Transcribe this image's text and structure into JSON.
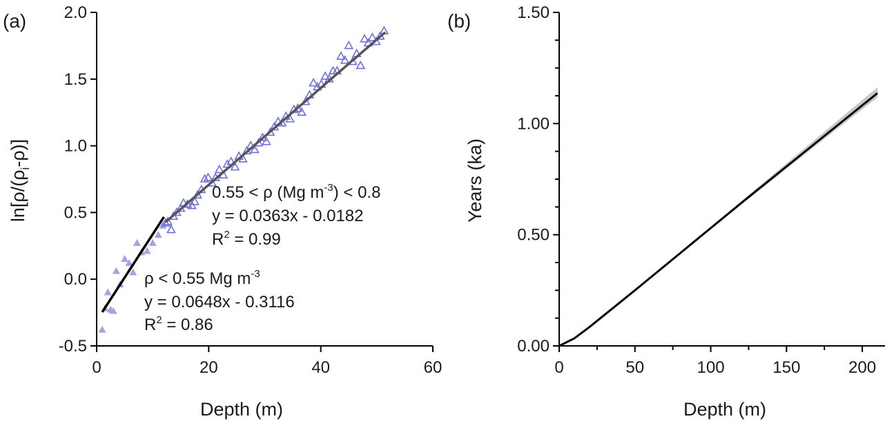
{
  "chart_data": [
    {
      "panel_label": "(a)",
      "type": "scatter",
      "xlabel": "Depth (m)",
      "ylabel_parts": {
        "main": "ln[ρ/(ρ",
        "sub": "i",
        "tail": "-ρ)]"
      },
      "xlim": [
        0,
        60
      ],
      "ylim": [
        -0.5,
        2.0
      ],
      "xticks": [
        0,
        20,
        40,
        60
      ],
      "xtick_labels": [
        "0",
        "20",
        "40",
        "60"
      ],
      "yticks": [
        -0.5,
        0.0,
        0.5,
        1.0,
        1.5,
        2.0
      ],
      "ytick_labels": [
        "-0.5",
        "0.0",
        "0.5",
        "1.0",
        "1.5",
        "2.0"
      ],
      "grid": false,
      "series": [
        {
          "marker": "filled-triangle",
          "color": "#a3a3e6",
          "points": [
            [
              1.0,
              -0.38
            ],
            [
              1.5,
              -0.22
            ],
            [
              2.0,
              -0.1
            ],
            [
              2.5,
              -0.23
            ],
            [
              3.0,
              -0.24
            ],
            [
              3.5,
              0.06
            ],
            [
              4.2,
              -0.04
            ],
            [
              5.0,
              0.15
            ],
            [
              5.8,
              0.12
            ],
            [
              6.5,
              0.05
            ],
            [
              7.2,
              0.27
            ],
            [
              8.0,
              0.2
            ],
            [
              9.0,
              0.21
            ],
            [
              10.0,
              0.27
            ],
            [
              11.0,
              0.33
            ],
            [
              11.8,
              0.4
            ]
          ]
        },
        {
          "marker": "open-triangle",
          "color": "#6f6fdc",
          "points": [
            [
              12.3,
              0.42
            ],
            [
              12.7,
              0.43
            ],
            [
              13.3,
              0.37
            ],
            [
              13.7,
              0.47
            ],
            [
              14.3,
              0.5
            ],
            [
              15.0,
              0.53
            ],
            [
              15.5,
              0.57
            ],
            [
              16.2,
              0.56
            ],
            [
              17.0,
              0.55
            ],
            [
              17.5,
              0.58
            ],
            [
              18.0,
              0.63
            ],
            [
              18.7,
              0.67
            ],
            [
              19.3,
              0.75
            ],
            [
              19.9,
              0.76
            ],
            [
              20.6,
              0.72
            ],
            [
              21.2,
              0.76
            ],
            [
              21.9,
              0.82
            ],
            [
              22.6,
              0.78
            ],
            [
              23.3,
              0.86
            ],
            [
              24.0,
              0.88
            ],
            [
              24.7,
              0.84
            ],
            [
              25.4,
              0.92
            ],
            [
              26.1,
              0.9
            ],
            [
              26.8,
              0.96
            ],
            [
              27.5,
              1.0
            ],
            [
              28.2,
              0.97
            ],
            [
              28.9,
              1.02
            ],
            [
              29.6,
              1.06
            ],
            [
              30.3,
              1.03
            ],
            [
              31.0,
              1.1
            ],
            [
              31.7,
              1.14
            ],
            [
              32.4,
              1.18
            ],
            [
              33.1,
              1.17
            ],
            [
              33.8,
              1.22
            ],
            [
              34.5,
              1.2
            ],
            [
              35.2,
              1.27
            ],
            [
              35.9,
              1.28
            ],
            [
              36.6,
              1.25
            ],
            [
              37.3,
              1.33
            ],
            [
              38.0,
              1.38
            ],
            [
              38.7,
              1.47
            ],
            [
              39.4,
              1.44
            ],
            [
              40.1,
              1.46
            ],
            [
              40.8,
              1.52
            ],
            [
              41.5,
              1.5
            ],
            [
              42.2,
              1.56
            ],
            [
              42.9,
              1.56
            ],
            [
              43.6,
              1.67
            ],
            [
              44.3,
              1.64
            ],
            [
              45.0,
              1.75
            ],
            [
              45.7,
              1.63
            ],
            [
              46.4,
              1.69
            ],
            [
              47.1,
              1.6
            ],
            [
              47.8,
              1.8
            ],
            [
              48.5,
              1.77
            ],
            [
              49.2,
              1.81
            ],
            [
              49.9,
              1.78
            ],
            [
              50.6,
              1.82
            ],
            [
              51.3,
              1.86
            ]
          ]
        }
      ],
      "fits": [
        {
          "color": "#000000",
          "x_range": [
            1.0,
            12.0
          ],
          "slope": 0.0648,
          "intercept": -0.3116
        },
        {
          "color": "#555555",
          "x_range": [
            12.3,
            51.5
          ],
          "slope": 0.0363,
          "intercept": -0.0182
        }
      ],
      "annotations": {
        "upper": {
          "line1_a": "0.55 < ρ (Mg m",
          "line1_sup": "-3",
          "line1_b": ") < 0.8",
          "line2": "y = 0.0363x - 0.0182",
          "line3_a": "R",
          "line3_sup": "2",
          "line3_b": " = 0.99"
        },
        "lower": {
          "line1_a": "ρ < 0.55 Mg m",
          "line1_sup": "-3",
          "line2": "y = 0.0648x - 0.3116",
          "line3_a": "R",
          "line3_sup": "2",
          "line3_b": " = 0.86"
        }
      }
    },
    {
      "panel_label": "(b)",
      "type": "line",
      "xlabel": "Depth (m)",
      "ylabel": "Years (ka)",
      "xlim": [
        0,
        215
      ],
      "ylim": [
        0,
        1.5
      ],
      "xticks": [
        0,
        50,
        100,
        150,
        200
      ],
      "xtick_labels": [
        "0",
        "50",
        "100",
        "150",
        "200"
      ],
      "yticks": [
        0.0,
        0.5,
        1.0,
        1.5
      ],
      "ytick_labels": [
        "0.00",
        "0.50",
        "1.00",
        "1.50"
      ],
      "grid": false,
      "line_color": "#000000",
      "band_color": "#c8c8c8",
      "series": [
        {
          "x": [
            0,
            10,
            20,
            30,
            40,
            50,
            60,
            70,
            80,
            90,
            100,
            110,
            120,
            130,
            140,
            150,
            160,
            170,
            180,
            190,
            200,
            210
          ],
          "y": [
            0.0,
            0.034,
            0.085,
            0.14,
            0.195,
            0.25,
            0.306,
            0.362,
            0.418,
            0.474,
            0.53,
            0.586,
            0.642,
            0.697,
            0.752,
            0.807,
            0.862,
            0.917,
            0.972,
            1.027,
            1.082,
            1.137
          ],
          "band_low": [
            0.0,
            0.033,
            0.084,
            0.139,
            0.194,
            0.249,
            0.305,
            0.36,
            0.415,
            0.47,
            0.525,
            0.58,
            0.634,
            0.688,
            0.742,
            0.796,
            0.85,
            0.904,
            0.958,
            1.011,
            1.064,
            1.117
          ],
          "band_high": [
            0.0,
            0.035,
            0.086,
            0.141,
            0.196,
            0.251,
            0.307,
            0.364,
            0.421,
            0.478,
            0.535,
            0.592,
            0.65,
            0.707,
            0.764,
            0.821,
            0.878,
            0.935,
            0.992,
            1.049,
            1.106,
            1.163
          ]
        }
      ]
    }
  ]
}
